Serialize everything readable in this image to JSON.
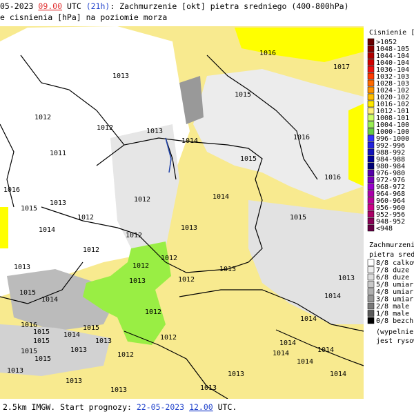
{
  "header": {
    "date_prefix": "05-2023",
    "time": "09.00",
    "utc": "UTC",
    "lead": "(21h)",
    "title": ": Zachmurzenie [okt] pietra sredniego (400-800hPa)",
    "line2": "e cisnienia [hPa] na poziomie morza"
  },
  "footer": {
    "source": "2.5km IMGW. Start prognozy:",
    "date": "22-05-2023",
    "time": "12.00",
    "utc": "UTC."
  },
  "pressure_legend": {
    "title": "Cisnienie [hP",
    "items": [
      {
        "label": ">1052",
        "color": "#6b0000"
      },
      {
        "label": "1048-105",
        "color": "#8b0000"
      },
      {
        "label": "1044-104",
        "color": "#b00000"
      },
      {
        "label": "1040-104",
        "color": "#d00000"
      },
      {
        "label": "1036-104",
        "color": "#ee1010"
      },
      {
        "label": "1032-103",
        "color": "#ff3a00"
      },
      {
        "label": "1028-103",
        "color": "#ff6a00"
      },
      {
        "label": "1024-102",
        "color": "#ff9400"
      },
      {
        "label": "1020-102",
        "color": "#ffbe00"
      },
      {
        "label": "1016-102",
        "color": "#ffe800"
      },
      {
        "label": "1012-101",
        "color": "#fff07a"
      },
      {
        "label": "1008-101",
        "color": "#ccff66"
      },
      {
        "label": "1004-100",
        "color": "#99ee55"
      },
      {
        "label": "1000-100",
        "color": "#66cc44"
      },
      {
        "label": "996-1000",
        "color": "#3333ff"
      },
      {
        "label": "992-996",
        "color": "#2222dd"
      },
      {
        "label": "988-992",
        "color": "#1111bb"
      },
      {
        "label": "984-988",
        "color": "#000099"
      },
      {
        "label": "980-984",
        "color": "#000077"
      },
      {
        "label": "976-980",
        "color": "#5500aa"
      },
      {
        "label": "972-976",
        "color": "#7700bb"
      },
      {
        "label": "968-972",
        "color": "#9900cc"
      },
      {
        "label": "964-968",
        "color": "#aa00aa"
      },
      {
        "label": "960-964",
        "color": "#bb0099"
      },
      {
        "label": "956-960",
        "color": "#cc0088"
      },
      {
        "label": "952-956",
        "color": "#aa0066"
      },
      {
        "label": "948-952",
        "color": "#880055"
      },
      {
        "label": "<948",
        "color": "#660044"
      }
    ]
  },
  "cloud_legend": {
    "title": "Zachmurzenie",
    "subtitle": "pietra srednie",
    "items": [
      {
        "label": "8/8 calkow",
        "color": "#ffffff"
      },
      {
        "label": "7/8 duze",
        "color": "#eeeeee"
      },
      {
        "label": "6/8 duze",
        "color": "#dddddd"
      },
      {
        "label": "5/8 umiar",
        "color": "#c8c8c8"
      },
      {
        "label": "4/8 umiar",
        "color": "#b0b0b0"
      },
      {
        "label": "3/8 umiar",
        "color": "#969696"
      },
      {
        "label": "2/8 male",
        "color": "#7a7a7a"
      },
      {
        "label": "1/8 male",
        "color": "#5a5a5a"
      },
      {
        "label": "0/8 bezch",
        "color": "#000000"
      }
    ],
    "note1": "(wypelnieni",
    "note2": "jest rysowe"
  },
  "isobar_labels": [
    "1016",
    "1017",
    "1013",
    "1015",
    "1012",
    "1012",
    "1013",
    "1014",
    "1016",
    "1011",
    "1015",
    "1016",
    "1016",
    "1014",
    "1013",
    "1012",
    "1015",
    "1012",
    "1015",
    "1014",
    "1012",
    "1013",
    "1012",
    "1013",
    "1012",
    "1012",
    "1013",
    "1012",
    "1013",
    "1015",
    "1014",
    "1014",
    "1013",
    "1012",
    "1014",
    "1016",
    "1015",
    "1014",
    "1015",
    "1015",
    "1013",
    "1012",
    "1013",
    "1015",
    "1015",
    "1012",
    "1014",
    "1014",
    "1014",
    "1013",
    "1014",
    "1013",
    "1013",
    "1013",
    "1013",
    "1014"
  ]
}
